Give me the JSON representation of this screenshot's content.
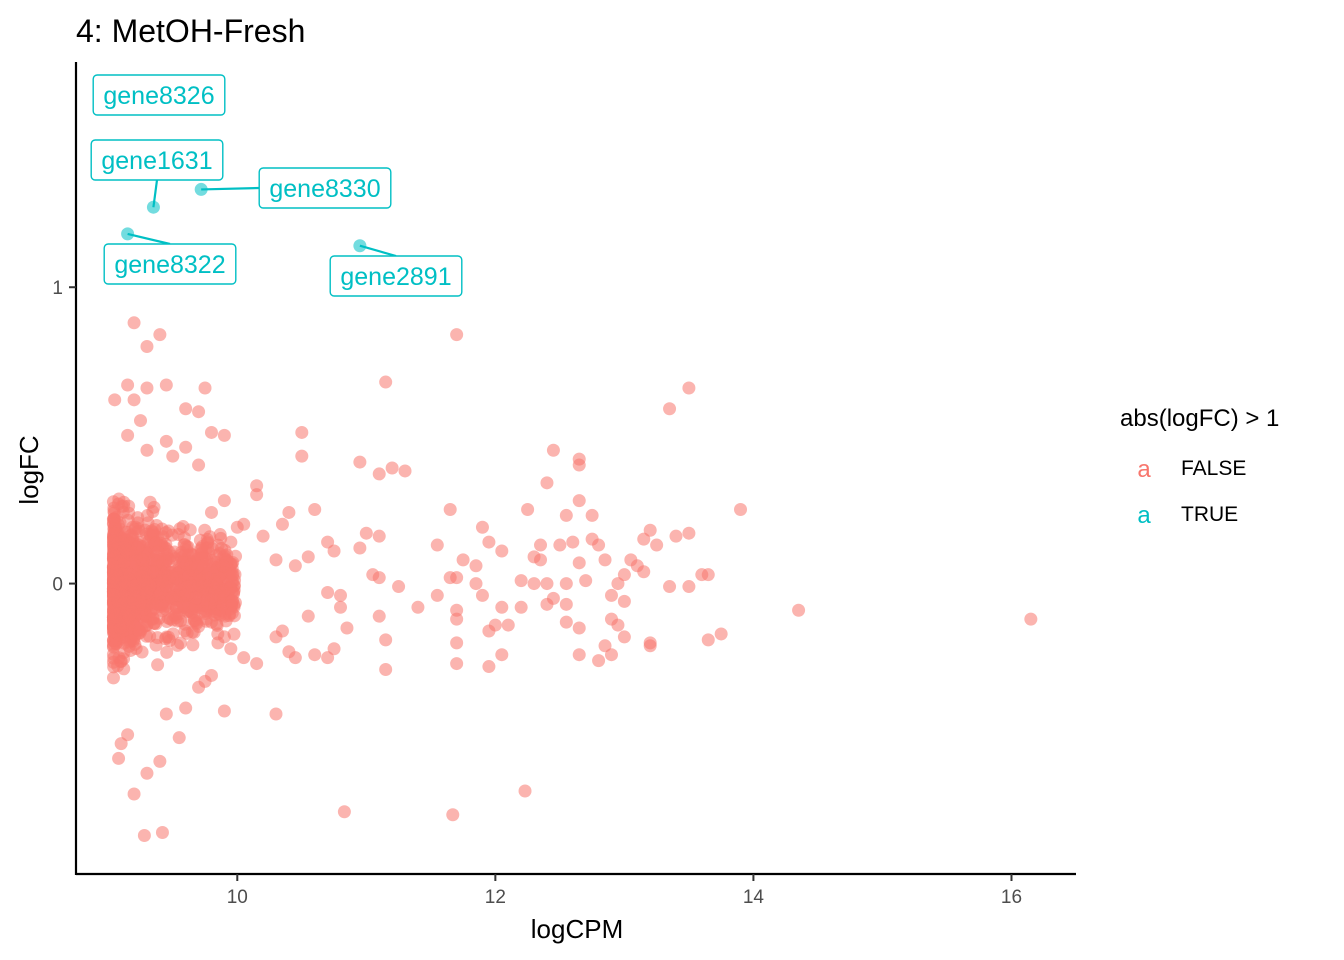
{
  "chart_data": {
    "type": "scatter",
    "title": "4: MetOH-Fresh",
    "xlabel": "logCPM",
    "ylabel": "logFC",
    "xlim": [
      8.75,
      16.5
    ],
    "ylim": [
      -0.98,
      1.76
    ],
    "x_ticks": [
      10,
      12,
      14,
      16
    ],
    "y_ticks": [
      0,
      1
    ],
    "grid": false,
    "legend": {
      "title": "abs(logFC) > 1",
      "position": "right",
      "key_glyph": "a",
      "entries": [
        {
          "label": "FALSE",
          "color": "#F8766D"
        },
        {
          "label": "TRUE",
          "color": "#00BFC4"
        }
      ]
    },
    "series": [
      {
        "name": "FALSE",
        "color": "#F8766D",
        "points": [
          [
            9.2,
            0.88
          ],
          [
            9.4,
            0.84
          ],
          [
            9.3,
            0.8
          ],
          [
            11.7,
            0.84
          ],
          [
            9.15,
            0.67
          ],
          [
            9.3,
            0.66
          ],
          [
            9.45,
            0.67
          ],
          [
            9.75,
            0.66
          ],
          [
            9.2,
            0.62
          ],
          [
            9.05,
            0.62
          ],
          [
            9.6,
            0.59
          ],
          [
            9.7,
            0.58
          ],
          [
            9.25,
            0.55
          ],
          [
            9.15,
            0.5
          ],
          [
            9.8,
            0.51
          ],
          [
            9.9,
            0.5
          ],
          [
            9.45,
            0.48
          ],
          [
            9.6,
            0.46
          ],
          [
            9.7,
            0.4
          ],
          [
            9.5,
            0.43
          ],
          [
            9.3,
            0.45
          ],
          [
            11.15,
            0.68
          ],
          [
            13.5,
            0.66
          ],
          [
            13.35,
            0.59
          ],
          [
            10.5,
            0.51
          ],
          [
            10.5,
            0.43
          ],
          [
            10.95,
            0.41
          ],
          [
            11.1,
            0.37
          ],
          [
            11.2,
            0.39
          ],
          [
            11.3,
            0.38
          ],
          [
            12.45,
            0.45
          ],
          [
            12.65,
            0.42
          ],
          [
            12.65,
            0.4
          ],
          [
            12.4,
            0.34
          ],
          [
            12.65,
            0.28
          ],
          [
            12.55,
            0.23
          ],
          [
            12.25,
            0.25
          ],
          [
            12.75,
            0.23
          ],
          [
            13.9,
            0.25
          ],
          [
            11.65,
            0.25
          ],
          [
            10.15,
            0.33
          ],
          [
            10.15,
            0.3
          ],
          [
            10.4,
            0.24
          ],
          [
            10.35,
            0.2
          ],
          [
            10.6,
            0.25
          ],
          [
            10.05,
            0.2
          ],
          [
            9.9,
            0.28
          ],
          [
            9.8,
            0.24
          ],
          [
            10.0,
            0.19
          ],
          [
            9.95,
            0.14
          ],
          [
            10.2,
            0.16
          ],
          [
            11.0,
            0.17
          ],
          [
            11.1,
            0.16
          ],
          [
            11.55,
            0.13
          ],
          [
            11.9,
            0.19
          ],
          [
            11.95,
            0.14
          ],
          [
            12.05,
            0.11
          ],
          [
            12.35,
            0.13
          ],
          [
            12.5,
            0.13
          ],
          [
            12.6,
            0.14
          ],
          [
            12.75,
            0.15
          ],
          [
            12.8,
            0.13
          ],
          [
            13.2,
            0.18
          ],
          [
            13.15,
            0.15
          ],
          [
            13.25,
            0.13
          ],
          [
            13.4,
            0.16
          ],
          [
            13.5,
            0.17
          ],
          [
            10.7,
            0.14
          ],
          [
            10.75,
            0.11
          ],
          [
            10.95,
            0.12
          ],
          [
            10.55,
            0.09
          ],
          [
            10.3,
            0.08
          ],
          [
            10.45,
            0.06
          ],
          [
            11.75,
            0.08
          ],
          [
            11.85,
            0.06
          ],
          [
            12.3,
            0.09
          ],
          [
            12.35,
            0.08
          ],
          [
            12.65,
            0.07
          ],
          [
            12.85,
            0.08
          ],
          [
            13.05,
            0.08
          ],
          [
            13.1,
            0.06
          ],
          [
            13.6,
            0.03
          ],
          [
            13.65,
            0.03
          ],
          [
            13.0,
            0.03
          ],
          [
            13.15,
            0.04
          ],
          [
            11.05,
            0.03
          ],
          [
            11.1,
            0.02
          ],
          [
            11.65,
            0.02
          ],
          [
            11.7,
            0.02
          ],
          [
            11.85,
            0.0
          ],
          [
            12.2,
            0.01
          ],
          [
            12.3,
            0.0
          ],
          [
            12.4,
            0.0
          ],
          [
            12.55,
            0.0
          ],
          [
            12.7,
            0.01
          ],
          [
            12.95,
            0.0
          ],
          [
            13.35,
            -0.01
          ],
          [
            13.5,
            -0.01
          ],
          [
            10.7,
            -0.03
          ],
          [
            10.8,
            -0.04
          ],
          [
            10.8,
            -0.08
          ],
          [
            11.25,
            -0.01
          ],
          [
            11.4,
            -0.08
          ],
          [
            11.55,
            -0.04
          ],
          [
            11.7,
            -0.09
          ],
          [
            11.9,
            -0.04
          ],
          [
            12.05,
            -0.08
          ],
          [
            12.2,
            -0.08
          ],
          [
            12.4,
            -0.07
          ],
          [
            12.45,
            -0.05
          ],
          [
            12.55,
            -0.07
          ],
          [
            12.9,
            -0.04
          ],
          [
            13.0,
            -0.06
          ],
          [
            14.35,
            -0.09
          ],
          [
            16.15,
            -0.12
          ],
          [
            10.85,
            -0.15
          ],
          [
            11.1,
            -0.11
          ],
          [
            11.15,
            -0.19
          ],
          [
            11.7,
            -0.12
          ],
          [
            11.7,
            -0.2
          ],
          [
            11.95,
            -0.16
          ],
          [
            12.0,
            -0.14
          ],
          [
            12.1,
            -0.14
          ],
          [
            12.55,
            -0.13
          ],
          [
            12.65,
            -0.15
          ],
          [
            12.9,
            -0.12
          ],
          [
            12.95,
            -0.14
          ],
          [
            13.0,
            -0.18
          ],
          [
            13.2,
            -0.21
          ],
          [
            13.2,
            -0.2
          ],
          [
            13.65,
            -0.19
          ],
          [
            13.75,
            -0.17
          ],
          [
            12.85,
            -0.21
          ],
          [
            12.9,
            -0.24
          ],
          [
            12.65,
            -0.24
          ],
          [
            12.8,
            -0.26
          ],
          [
            11.7,
            -0.27
          ],
          [
            11.95,
            -0.28
          ],
          [
            12.05,
            -0.24
          ],
          [
            11.15,
            -0.29
          ],
          [
            10.6,
            -0.24
          ],
          [
            10.7,
            -0.25
          ],
          [
            10.75,
            -0.22
          ],
          [
            10.45,
            -0.25
          ],
          [
            10.4,
            -0.23
          ],
          [
            10.3,
            -0.18
          ],
          [
            10.35,
            -0.16
          ],
          [
            10.55,
            -0.11
          ],
          [
            10.15,
            -0.27
          ],
          [
            10.05,
            -0.25
          ],
          [
            9.85,
            -0.2
          ],
          [
            9.8,
            -0.13
          ],
          [
            9.9,
            -0.18
          ],
          [
            9.95,
            -0.22
          ],
          [
            9.75,
            -0.33
          ],
          [
            9.8,
            -0.31
          ],
          [
            9.7,
            -0.35
          ],
          [
            9.9,
            -0.43
          ],
          [
            10.3,
            -0.44
          ],
          [
            9.6,
            -0.42
          ],
          [
            9.45,
            -0.44
          ],
          [
            9.55,
            -0.52
          ],
          [
            9.4,
            -0.6
          ],
          [
            9.3,
            -0.64
          ],
          [
            9.15,
            -0.51
          ],
          [
            9.1,
            -0.54
          ],
          [
            9.08,
            -0.59
          ],
          [
            9.2,
            -0.71
          ],
          [
            9.28,
            -0.85
          ],
          [
            9.42,
            -0.84
          ],
          [
            10.83,
            -0.77
          ],
          [
            11.67,
            -0.78
          ],
          [
            12.23,
            -0.7
          ]
        ]
      },
      {
        "name": "TRUE",
        "color": "#00BFC4",
        "points": [
          {
            "x": 9.35,
            "y": 1.27,
            "label": "gene1631"
          },
          {
            "x": 9.72,
            "y": 1.33,
            "label": "gene8330"
          },
          {
            "x": 9.15,
            "y": 1.18,
            "label": "gene8322"
          },
          {
            "x": 10.95,
            "y": 1.14,
            "label": "gene2891"
          },
          {
            "label": "gene8326"
          }
        ]
      }
    ]
  }
}
